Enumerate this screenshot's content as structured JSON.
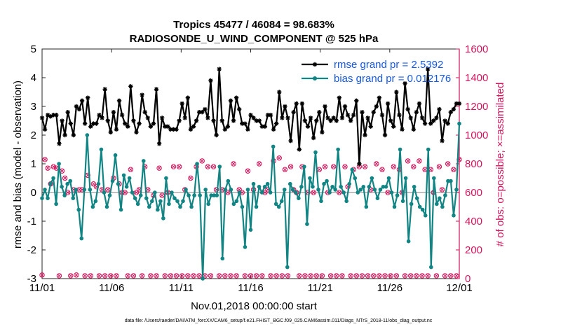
{
  "chart_data": {
    "type": "line",
    "title": "Tropics 45477 / 46084 = 98.683%",
    "subtitle": "RADIOSONDE_U_WIND_COMPONENT @ 525 hPa",
    "xlabel": "Nov.01,2018 00:00:00 start",
    "ylabel": "rmse and bias (model - observation)",
    "ylabel_right": "# of obs: o=possible; ×=assimilated",
    "footer": "data file: /Users/raeder/DAI/ATM_forcXX/CAM6_setup/f.e21.FHIST_BGC.f09_025.CAM6assim.011/Diags_NTrS_2018-11/obs_diag_output.nc",
    "xlim": [
      0,
      30
    ],
    "ylim": [
      -3,
      5
    ],
    "ylim_right": [
      0,
      1600
    ],
    "x_ticks": [
      0,
      5,
      10,
      15,
      20,
      25,
      30
    ],
    "x_tick_labels": [
      "11/01",
      "11/06",
      "11/11",
      "11/16",
      "11/21",
      "11/26",
      "12/01"
    ],
    "y_ticks": [
      -3,
      -2,
      -1,
      0,
      1,
      2,
      3,
      4,
      5
    ],
    "y_tick_labels": [
      "-3",
      "-2",
      "-1",
      "0",
      "1",
      "2",
      "3",
      "4",
      "5"
    ],
    "y_right_ticks": [
      0,
      200,
      400,
      600,
      800,
      1000,
      1200,
      1400,
      1600
    ],
    "y_right_tick_labels": [
      "0",
      "200",
      "400",
      "600",
      "800",
      "1000",
      "1200",
      "1400",
      "1600"
    ],
    "legend": [
      "rmse grand pr = 2.5392",
      "bias grand pr = 0.012176"
    ],
    "legend_position": "top-right",
    "zero_line": 0,
    "colors": {
      "rmse": "#000000",
      "bias": "#118484",
      "obs": "#d6135b",
      "zero": "#aaaaaa",
      "legend_text": "#1458e6"
    },
    "series": [
      {
        "name": "rmse",
        "values": [
          2.6,
          2.2,
          2.7,
          2.65,
          2.7,
          2.7,
          1.7,
          2.5,
          2.0,
          2.8,
          2.4,
          2.0,
          3.0,
          2.9,
          3.2,
          2.4,
          3.3,
          2.3,
          2.4,
          2.4,
          2.7,
          2.6,
          3.6,
          2.5,
          2.1,
          2.8,
          2.2,
          3.2,
          2.7,
          2.4,
          2.3,
          3.7,
          2.5,
          2.1,
          2.4,
          3.4,
          2.8,
          2.6,
          2.3,
          2.4,
          3.6,
          1.7,
          2.6,
          2.3,
          2.3,
          2.2,
          2.2,
          2.2,
          2.5,
          3.1,
          2.6,
          3.3,
          2.2,
          2.3,
          2.5,
          2.8,
          2.8,
          2.9,
          2.6,
          3.9,
          2.5,
          2.0,
          4.3,
          2.5,
          2.2,
          2.3,
          3.2,
          2.5,
          3.3,
          2.9,
          2.4,
          2.4,
          2.2,
          2.7,
          2.6,
          2.5,
          2.5,
          2.3,
          2.3,
          2.7,
          2.7,
          2.2,
          2.4,
          3.5,
          2.6,
          3.0,
          2.6,
          1.8,
          2.8,
          3.1,
          1.5,
          3.1,
          2.5,
          2.3,
          2.6,
          1.9,
          2.5,
          2.8,
          2.1,
          3.0,
          2.6,
          2.5,
          2.6,
          2.5,
          3.3,
          2.6,
          3.0,
          2.7,
          2.5,
          2.7,
          3.2,
          1.0,
          2.8,
          2.0,
          2.6,
          2.3,
          2.8,
          3.0,
          3.3,
          2.7,
          2.0,
          3.1,
          2.5,
          2.3,
          3.5,
          2.7,
          2.2,
          3.8,
          2.9,
          2.6,
          2.2,
          2.8,
          3.1,
          2.6,
          2.4,
          4.3,
          2.4,
          2.5,
          2.6,
          2.9,
          1.8,
          2.5,
          2.4,
          2.8,
          2.9,
          3.1,
          3.1
        ]
      },
      {
        "name": "bias",
        "values": [
          -0.2,
          0.1,
          -0.2,
          0.3,
          0.5,
          -0.4,
          1.0,
          0.2,
          -0.1,
          0.3,
          0.4,
          -0.2,
          0.1,
          -0.6,
          -1.6,
          0.1,
          2.0,
          0.1,
          -0.5,
          -0.3,
          0.3,
          1.5,
          0.0,
          -0.5,
          -0.1,
          0.4,
          1.3,
          0.3,
          -0.6,
          0.6,
          0.2,
          0.5,
          0.0,
          -0.2,
          -0.4,
          -0.1,
          1.1,
          -0.2,
          -0.5,
          -0.3,
          0.0,
          -0.6,
          -0.3,
          -0.9,
          0.5,
          -0.4,
          0.0,
          -0.2,
          -0.3,
          -0.5,
          -0.3,
          0.1,
          -0.1,
          -0.5,
          -0.1,
          1.0,
          -0.1,
          -3.0,
          0.1,
          -0.4,
          -0.1,
          -0.1,
          -0.1,
          0.9,
          -2.3,
          0.1,
          0.4,
          0.1,
          -0.4,
          -0.3,
          0.0,
          -0.5,
          -1.9,
          0.1,
          -1.3,
          0.3,
          -0.5,
          0.2,
          0.0,
          0.2,
          0.3,
          0.0,
          1.6,
          -0.4,
          -0.5,
          -0.3,
          0.1,
          -2.6,
          0.3,
          0.1,
          0.0,
          -0.2,
          0.2,
          0.9,
          -1.1,
          0.5,
          0.2,
          1.4,
          0.1,
          -0.3,
          0.3,
          0.4,
          0.0,
          0.2,
          0.1,
          1.5,
          0.2,
          0.0,
          -0.3,
          0.3,
          0.8,
          0.5,
          0.0,
          0.1,
          0.2,
          -0.5,
          0.2,
          0.5,
          0.1,
          -0.2,
          0.1,
          0.2,
          0.2,
          0.5,
          0.0,
          -0.5,
          -0.1,
          1.5,
          -0.3,
          0.5,
          -1.7,
          -0.4,
          0.2,
          -0.2,
          -0.5,
          -0.6,
          -0.8,
          1.5,
          -2.6,
          0.5,
          -0.4,
          -0.2,
          -0.5,
          -0.1,
          0.4,
          0.4,
          -0.8,
          0.1,
          2.4
        ]
      },
      {
        "name": "obs_possible",
        "values": [
          25,
          830,
          770,
          660,
          780,
          770,
          20,
          750,
          700,
          600,
          20,
          620,
          25,
          620,
          620,
          20,
          720,
          20,
          660,
          640,
          20,
          620,
          20,
          620,
          20,
          700,
          20,
          660,
          600,
          600,
          20,
          760,
          20,
          600,
          620,
          20,
          780,
          620,
          20,
          580,
          20,
          770,
          580,
          20,
          600,
          20,
          780,
          20,
          780,
          20,
          620,
          20,
          700,
          20,
          780,
          20,
          820,
          20,
          780,
          20,
          780,
          620,
          20,
          620,
          20,
          600,
          20,
          800,
          20,
          620,
          600,
          20,
          750,
          20,
          620,
          20,
          800,
          20,
          600,
          620,
          20,
          820,
          20,
          840,
          20,
          760,
          20,
          780,
          620,
          600,
          20,
          780,
          20,
          600,
          20,
          600,
          20,
          760,
          20,
          780,
          600,
          20,
          780,
          20,
          600,
          20,
          780,
          640,
          20,
          760,
          20,
          780,
          20,
          780,
          20,
          620,
          20,
          800,
          20,
          760,
          20,
          600,
          20,
          780,
          20,
          760,
          600,
          20,
          820,
          20,
          780,
          20,
          820,
          20,
          760,
          20,
          760,
          600,
          20,
          780,
          620,
          20,
          800,
          20,
          760,
          20,
          830
        ]
      },
      {
        "name": "obs_assimilated",
        "values": [
          25,
          830,
          770,
          660,
          780,
          770,
          20,
          750,
          700,
          600,
          20,
          620,
          25,
          620,
          620,
          20,
          720,
          20,
          660,
          640,
          20,
          620,
          20,
          620,
          20,
          700,
          20,
          660,
          600,
          600,
          20,
          760,
          20,
          600,
          620,
          20,
          780,
          620,
          20,
          580,
          20,
          770,
          580,
          20,
          600,
          20,
          780,
          20,
          780,
          20,
          620,
          20,
          700,
          20,
          780,
          20,
          820,
          20,
          780,
          20,
          780,
          620,
          20,
          620,
          20,
          600,
          20,
          800,
          20,
          620,
          600,
          20,
          750,
          20,
          620,
          20,
          800,
          20,
          600,
          620,
          20,
          820,
          20,
          840,
          20,
          760,
          20,
          780,
          620,
          600,
          20,
          780,
          20,
          600,
          20,
          600,
          20,
          760,
          20,
          780,
          600,
          20,
          780,
          20,
          600,
          20,
          780,
          640,
          20,
          760,
          20,
          780,
          20,
          780,
          20,
          620,
          20,
          800,
          20,
          760,
          20,
          600,
          20,
          780,
          20,
          760,
          600,
          20,
          820,
          20,
          780,
          20,
          820,
          20,
          760,
          20,
          760,
          600,
          20,
          780,
          620,
          20,
          800,
          20,
          760,
          20,
          830
        ]
      }
    ]
  }
}
